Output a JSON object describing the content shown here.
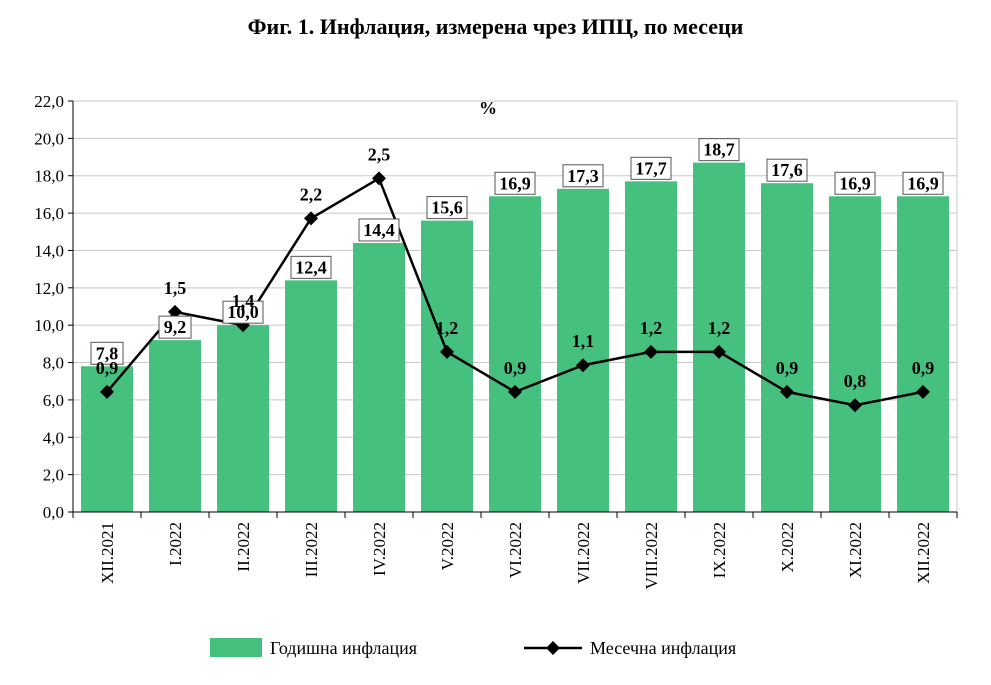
{
  "chart_data": {
    "type": "bar+line",
    "title": "Фиг. 1. Инфлация, измерена чрез ИПЦ, по месеци",
    "unit_label": "%",
    "categories": [
      "XII.2021",
      "I.2022",
      "II.2022",
      "III.2022",
      "IV.2022",
      "V.2022",
      "VI.2022",
      "VII.2022",
      "VIII.2022",
      "IX.2022",
      "X.2022",
      "XI.2022",
      "XII.2022"
    ],
    "y_ticks": [
      "0,0",
      "2,0",
      "4,0",
      "6,0",
      "8,0",
      "10,0",
      "12,0",
      "14,0",
      "16,0",
      "18,0",
      "20,0",
      "22,0"
    ],
    "ylim": [
      0,
      22
    ],
    "grid": true,
    "legend_position": "bottom",
    "series": [
      {
        "name": "Годишна инфлация",
        "type": "bar",
        "color": "#45c07f",
        "values": [
          7.8,
          9.2,
          10.0,
          12.4,
          14.4,
          15.6,
          16.9,
          17.3,
          17.7,
          18.7,
          17.6,
          16.9,
          16.9
        ],
        "labels": [
          "7,8",
          "9,2",
          "10,0",
          "12,4",
          "14,4",
          "15,6",
          "16,9",
          "17,3",
          "17,7",
          "18,7",
          "17,6",
          "16,9",
          "16,9"
        ]
      },
      {
        "name": "Месечна инфлация",
        "type": "line",
        "color": "#000000",
        "values": [
          0.9,
          1.5,
          1.4,
          2.2,
          2.5,
          1.2,
          0.9,
          1.1,
          1.2,
          1.2,
          0.9,
          0.8,
          0.9
        ],
        "labels": [
          "0,9",
          "1,5",
          "1,4",
          "2,2",
          "2,5",
          "1,2",
          "0,9",
          "1,1",
          "1,2",
          "1,2",
          "0,9",
          "0,8",
          "0,9"
        ]
      }
    ]
  }
}
